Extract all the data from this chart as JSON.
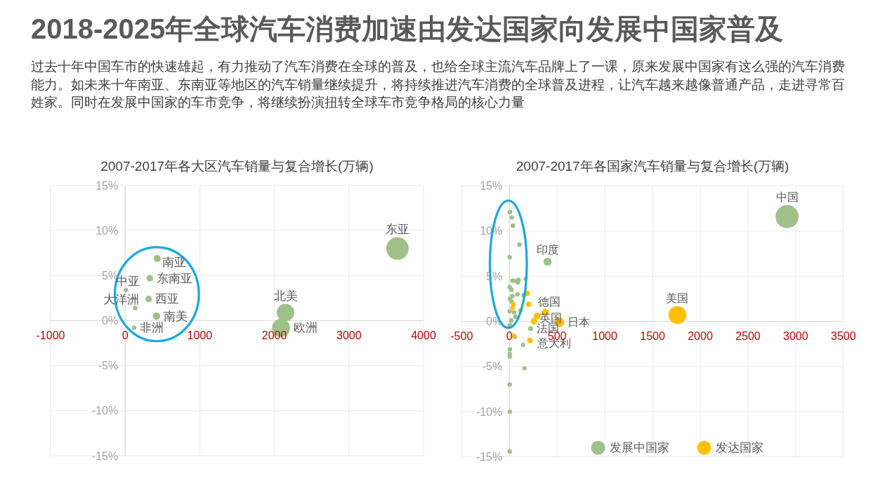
{
  "chart_data": [
    {
      "type": "other",
      "title": "2018-2025年全球汽车消费加速由发达国家向发展中国家普及",
      "subtitle": "过去十年中国车市的快速雄起，有力推动了汽车消费在全球的普及，也给全球主流汽车品牌上了一课，原来发展中国家有这么强的汽车消费能力。如未来十年南亚、东南亚等地区的汽车销量继续提升，将持续推进汽车消费的全球普及进程，让汽车越来越像普通产品，走进寻常百姓家。同时在发展中国家的车市竞争，将继续扮演扭转全球车市竞争格局的核心力量"
    },
    {
      "type": "bubble",
      "title": "2007-2017年各大区汽车销量与复合增长(万辆)",
      "xlim": [
        -1000,
        4000
      ],
      "xticks": [
        -1000,
        0,
        1000,
        2000,
        3000,
        4000
      ],
      "ylim": [
        -15,
        15
      ],
      "yticks": [
        {
          "value": 15,
          "label": "15%"
        },
        {
          "value": 10,
          "label": "10%"
        },
        {
          "value": 5,
          "label": "5%"
        },
        {
          "value": 0,
          "label": "0%"
        },
        {
          "value": -5,
          "label": "-5%"
        },
        {
          "value": -10,
          "label": "-10%"
        },
        {
          "value": -15,
          "label": "-15%"
        }
      ],
      "grid": true,
      "series": [
        {
          "color": "#a0c08a",
          "x": [
            3650,
            2150,
            2090,
            430,
            330,
            315,
            420
          ],
          "values": [
            8.0,
            0.9,
            -0.8,
            6.9,
            4.7,
            2.4,
            0.5
          ],
          "sizes": [
            1,
            0.61,
            0.65,
            0.1,
            0.085,
            0.085,
            0.11
          ]
        },
        {
          "type": "scatter",
          "color": "#a0c08a",
          "x": [
            135,
            120,
            10
          ],
          "values": [
            1.4,
            -0.8,
            3.4
          ]
        }
      ],
      "annotations": [
        {
          "text": "东亚",
          "x": 3650,
          "y": 8.0
        },
        {
          "text": "北美",
          "x": 2150,
          "y": 0.9
        },
        {
          "text": "欧洲",
          "x": 2090,
          "y": -0.8
        },
        {
          "text": "南亚",
          "x": 430,
          "y": 6.9
        },
        {
          "text": "东南亚",
          "x": 330,
          "y": 4.7
        },
        {
          "text": "西亚",
          "x": 315,
          "y": 2.4
        },
        {
          "text": "南美",
          "x": 420,
          "y": 0.5
        },
        {
          "text": "大洋洲",
          "x": 135,
          "y": 1.4
        },
        {
          "text": "非洲",
          "x": 120,
          "y": -0.8
        },
        {
          "text": "中亚",
          "x": 10,
          "y": 3.4
        }
      ]
    },
    {
      "type": "bubble",
      "title": "2007-2017年各国家汽车销量与复合增长(万辆)",
      "xlim": [
        -500,
        3500
      ],
      "xticks": [
        -500,
        0,
        500,
        1000,
        1500,
        2000,
        2500,
        3000,
        3500
      ],
      "ylim": [
        -15,
        15
      ],
      "yticks": [
        {
          "value": 15,
          "label": "15%"
        },
        {
          "value": 10,
          "label": "10%"
        },
        {
          "value": 5,
          "label": "5%"
        },
        {
          "value": 0,
          "label": "0%"
        },
        {
          "value": -5,
          "label": "-5%"
        },
        {
          "value": -10,
          "label": "-10%"
        },
        {
          "value": -15,
          "label": "-15%"
        }
      ],
      "grid": true,
      "legend": "bottom",
      "series": [
        {
          "name": "发展中国家",
          "color": "#a0c08a",
          "x": [
            2910,
            400,
            170,
            143,
            159,
            222
          ],
          "values": [
            11.6,
            6.6,
            4.7,
            -2.6,
            -5.2,
            -0.8
          ],
          "sizes": [
            1,
            0.12,
            0.035,
            0.035,
            0.035,
            0.045
          ]
        },
        {
          "name": "发达国家",
          "color": "#ffc000",
          "x": [
            1760,
            525,
            377,
            290,
            258,
            215,
            202,
            185
          ],
          "values": [
            0.7,
            -0.1,
            1.0,
            0.6,
            0.0,
            -2.1,
            1.9,
            3.1
          ],
          "sizes": [
            0.6,
            0.17,
            0.1,
            0.085,
            0.08,
            0.06,
            0.055,
            0.055
          ]
        },
        {
          "type": "scatter",
          "color": "#a0c08a",
          "x": [
            105,
            95,
            88,
            50,
            32,
            85,
            150,
            63,
            22,
            32,
            50,
            22,
            20,
            55,
            25,
            37,
            5,
            3,
            3,
            4,
            3,
            4,
            5,
            3,
            4,
            3,
            5,
            3
          ],
          "values": [
            8.5,
            4.6,
            4.3,
            4.5,
            4.5,
            3.0,
            2.9,
            0.5,
            3.5,
            2.8,
            1.0,
            2.2,
            0.1,
            -1.7,
            11.5,
            10.6,
            12.1,
            7.1,
            3.8,
            2.5,
            1.1,
            -0.4,
            -3.1,
            -3.6,
            -3.9,
            -7.0,
            -10.0,
            -14.4
          ]
        },
        {
          "type": "scatter",
          "color": "#ffc000",
          "x": [
            117,
            41,
            32,
            45
          ],
          "values": [
            1.2,
            1.9,
            1.5,
            -1.6
          ]
        }
      ],
      "annotations": [
        {
          "text": "中国",
          "x": 2910,
          "y": 11.6
        },
        {
          "text": "印度",
          "x": 400,
          "y": 6.6
        },
        {
          "text": "美国",
          "x": 1760,
          "y": 0.7
        },
        {
          "text": "德国",
          "x": 377,
          "y": 1.0
        },
        {
          "text": "英国",
          "x": 290,
          "y": 0.6
        },
        {
          "text": "日本",
          "x": 525,
          "y": -0.1
        },
        {
          "text": "法国",
          "x": 258,
          "y": 0.0
        },
        {
          "text": "意大利",
          "x": 215,
          "y": -2.1
        }
      ]
    }
  ]
}
